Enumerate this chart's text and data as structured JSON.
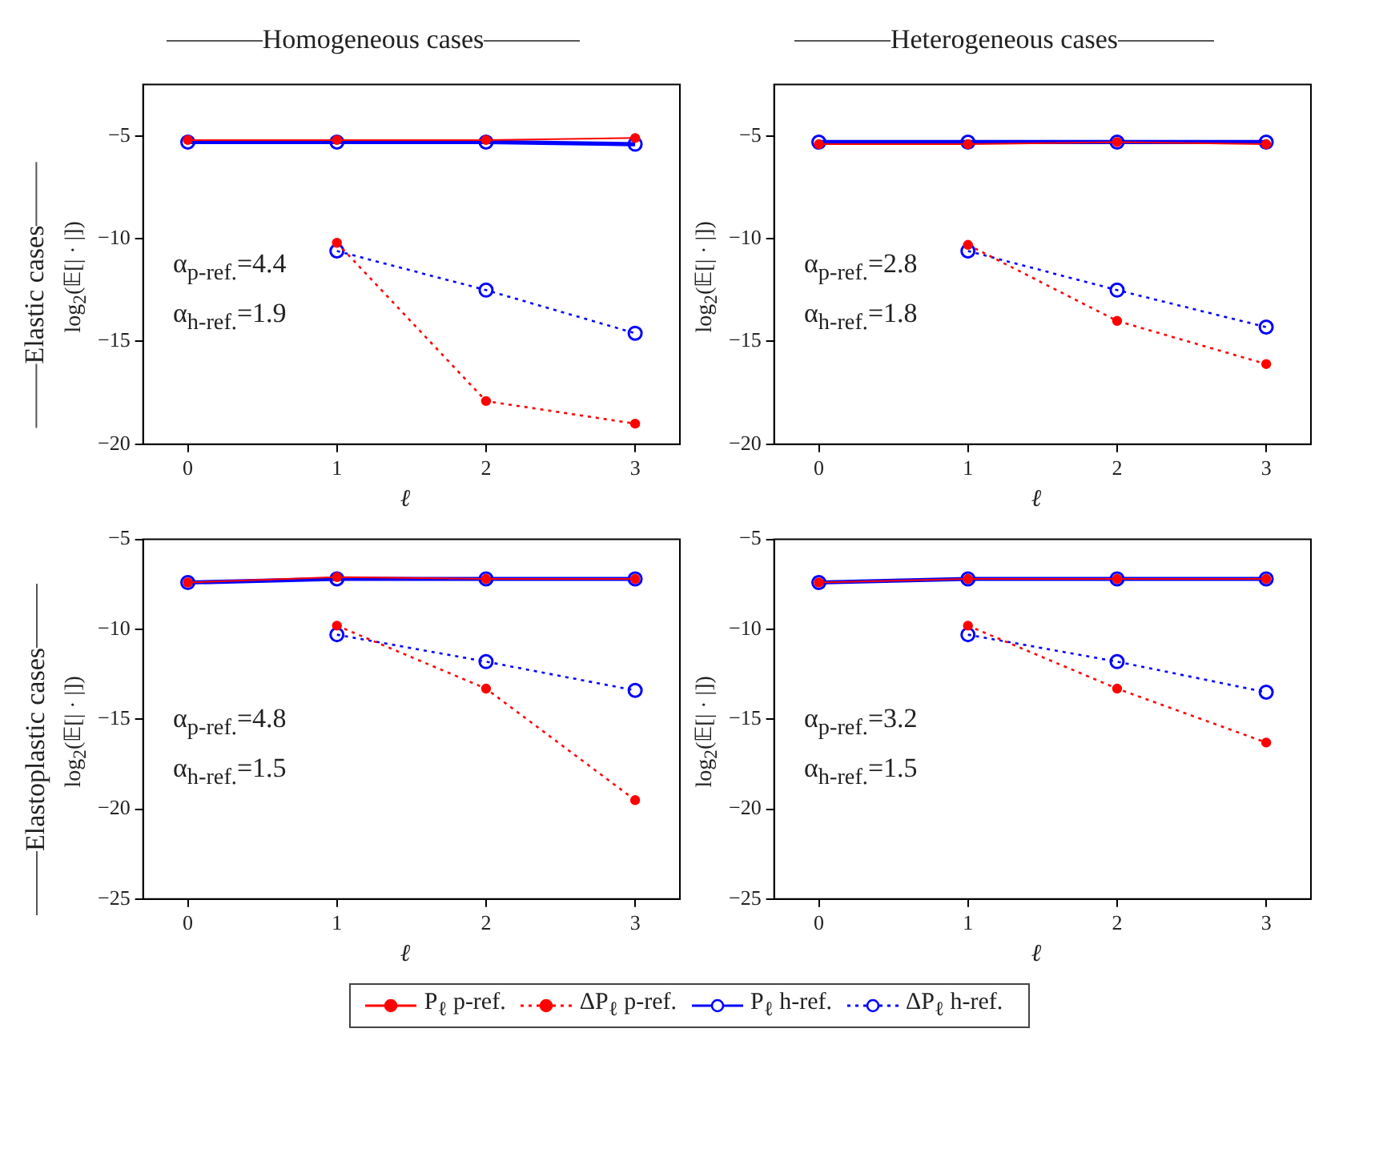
{
  "chart_data": [
    {
      "type": "line",
      "title": "Homogeneous cases",
      "subtitle": "Elastic cases",
      "xlabel": "ℓ",
      "ylabel": "log$_{2}$(𝔼[| · |])",
      "x": [
        0,
        1,
        2,
        3
      ],
      "xlim": [
        -0.3,
        3.3
      ],
      "xticks": [
        0,
        1,
        2,
        3
      ],
      "ylim": [
        -20,
        -2.5
      ],
      "yticks": [
        -20,
        -15,
        -10,
        -5
      ],
      "marker": "circle",
      "legend": "bottom",
      "annotations": [
        "α$_{p-ref.}$=4.4",
        "α$_{h-ref.}$=1.9"
      ],
      "series": [
        {
          "name": "P$_{ℓ}$ p-ref.",
          "color": "#ff0000",
          "line_style": "solid",
          "values": [
            -5.2,
            -5.2,
            -5.2,
            -5.1
          ]
        },
        {
          "name": "ΔP$_{ℓ}$ p-ref.",
          "color": "#ff0000",
          "line_style": "dotted",
          "values": [
            null,
            -10.2,
            -17.9,
            -19.0
          ]
        },
        {
          "name": "P$_{ℓ}$ h-ref.",
          "color": "#0000ff",
          "line_style": "solid",
          "values": [
            -5.3,
            -5.3,
            -5.3,
            -5.4
          ]
        },
        {
          "name": "ΔP$_{ℓ}$ h-ref.",
          "color": "#0000ff",
          "line_style": "dotted",
          "values": [
            null,
            -10.6,
            -12.5,
            -14.6
          ]
        }
      ]
    },
    {
      "type": "line",
      "title": "Heterogeneous cases",
      "xlabel": "ℓ",
      "ylabel": "log$_{2}$(𝔼[| · |])",
      "x": [
        0,
        1,
        2,
        3
      ],
      "xlim": [
        -0.3,
        3.3
      ],
      "xticks": [
        0,
        1,
        2,
        3
      ],
      "ylim": [
        -20,
        -2.5
      ],
      "yticks": [
        -20,
        -15,
        -10,
        -5
      ],
      "marker": "circle",
      "annotations": [
        "α$_{p-ref.}$=2.8",
        "α$_{h-ref.}$=1.8"
      ],
      "series": [
        {
          "color": "#ff0000",
          "line_style": "solid",
          "values": [
            -5.4,
            -5.4,
            -5.3,
            -5.4
          ]
        },
        {
          "color": "#ff0000",
          "line_style": "dotted",
          "values": [
            null,
            -10.3,
            -14.0,
            -16.1
          ]
        },
        {
          "color": "#0000ff",
          "line_style": "solid",
          "values": [
            -5.3,
            -5.3,
            -5.3,
            -5.3
          ]
        },
        {
          "color": "#0000ff",
          "line_style": "dotted",
          "values": [
            null,
            -10.6,
            -12.5,
            -14.3
          ]
        }
      ]
    },
    {
      "type": "line",
      "subtitle": "Elastoplastic cases",
      "xlabel": "ℓ",
      "ylabel": "log$_{2}$(𝔼[| · |])",
      "x": [
        0,
        1,
        2,
        3
      ],
      "xlim": [
        -0.3,
        3.3
      ],
      "xticks": [
        0,
        1,
        2,
        3
      ],
      "ylim": [
        -25,
        -5
      ],
      "yticks": [
        -25,
        -20,
        -15,
        -10,
        -5
      ],
      "marker": "circle",
      "annotations": [
        "α$_{p-ref.}$=4.8",
        "α$_{h-ref.}$=1.5"
      ],
      "series": [
        {
          "color": "#ff0000",
          "line_style": "solid",
          "values": [
            -7.4,
            -7.1,
            -7.2,
            -7.2
          ]
        },
        {
          "color": "#ff0000",
          "line_style": "dotted",
          "values": [
            null,
            -9.8,
            -13.3,
            -19.5
          ]
        },
        {
          "color": "#0000ff",
          "line_style": "solid",
          "values": [
            -7.4,
            -7.2,
            -7.2,
            -7.2
          ]
        },
        {
          "color": "#0000ff",
          "line_style": "dotted",
          "values": [
            null,
            -10.3,
            -11.8,
            -13.4
          ]
        }
      ]
    },
    {
      "type": "line",
      "xlabel": "ℓ",
      "ylabel": "log$_{2}$(𝔼[| · |])",
      "x": [
        0,
        1,
        2,
        3
      ],
      "xlim": [
        -0.3,
        3.3
      ],
      "xticks": [
        0,
        1,
        2,
        3
      ],
      "ylim": [
        -25,
        -5
      ],
      "yticks": [
        -25,
        -20,
        -15,
        -10,
        -5
      ],
      "marker": "circle",
      "annotations": [
        "α$_{p-ref.}$=3.2",
        "α$_{h-ref.}$=1.5"
      ],
      "series": [
        {
          "color": "#ff0000",
          "line_style": "solid",
          "values": [
            -7.4,
            -7.2,
            -7.2,
            -7.2
          ]
        },
        {
          "color": "#ff0000",
          "line_style": "dotted",
          "values": [
            null,
            -9.8,
            -13.3,
            -16.3
          ]
        },
        {
          "color": "#0000ff",
          "line_style": "solid",
          "values": [
            -7.4,
            -7.2,
            -7.2,
            -7.2
          ]
        },
        {
          "color": "#0000ff",
          "line_style": "dotted",
          "values": [
            null,
            -10.3,
            -11.8,
            -13.5
          ]
        }
      ]
    }
  ]
}
